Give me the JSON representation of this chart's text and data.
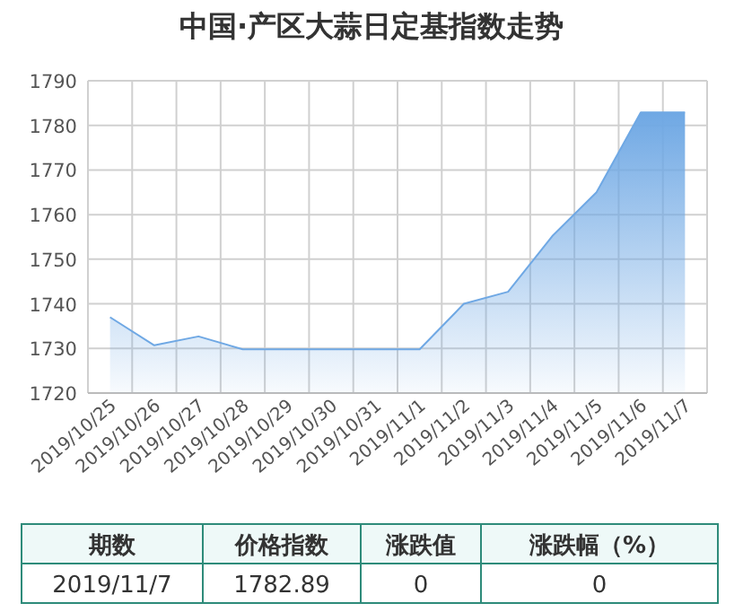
{
  "chart_data": {
    "type": "area",
    "title": "中国·产区大蒜日定基指数走势",
    "categories": [
      "2019/10/25",
      "2019/10/26",
      "2019/10/27",
      "2019/10/28",
      "2019/10/29",
      "2019/10/30",
      "2019/10/31",
      "2019/11/1",
      "2019/11/2",
      "2019/11/3",
      "2019/11/4",
      "2019/11/5",
      "2019/11/6",
      "2019/11/7"
    ],
    "series": [
      {
        "color": "#6fa8e4",
        "values": [
          1737.0,
          1730.7,
          1732.7,
          1729.8,
          1729.8,
          1729.8,
          1729.8,
          1729.8,
          1740.0,
          1742.7,
          1755.2,
          1765.0,
          1782.9,
          1782.9
        ]
      }
    ],
    "ylim": [
      1720,
      1790
    ],
    "yticks": [
      1720,
      1730,
      1740,
      1750,
      1760,
      1770,
      1780,
      1790
    ],
    "grid": true,
    "annotations": [
      "期数",
      "价格指数",
      "涨跌值",
      "涨跌幅（%）",
      "2019/11/7",
      "1782.89",
      "0",
      "0"
    ]
  }
}
